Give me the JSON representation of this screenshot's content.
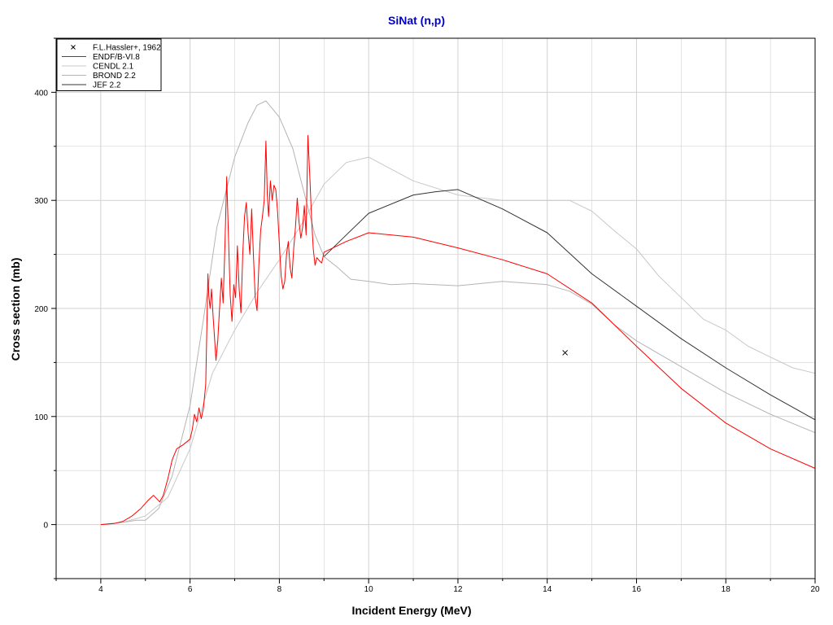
{
  "chart_data": {
    "type": "line",
    "title": "SiNat (n,p)",
    "xlabel": "Incident Energy (MeV)",
    "ylabel": "Cross section (mb)",
    "xlim": [
      3,
      20
    ],
    "ylim": [
      -50,
      450
    ],
    "x_ticks": [
      4,
      6,
      8,
      10,
      12,
      14,
      16,
      18,
      20
    ],
    "y_ticks": [
      0,
      100,
      200,
      300,
      400
    ],
    "grid": true,
    "legend_position": "top-left",
    "series": [
      {
        "name": "F.L.Hassler+, 1962",
        "kind": "points",
        "marker": "x",
        "color": "#000000",
        "points": [
          [
            14.4,
            159
          ]
        ]
      },
      {
        "name": "ENDF/B-VI.8",
        "kind": "line",
        "color": "#ff0000",
        "points": [
          [
            4.0,
            0
          ],
          [
            4.3,
            1
          ],
          [
            4.5,
            3
          ],
          [
            4.7,
            8
          ],
          [
            4.9,
            15
          ],
          [
            5.05,
            22
          ],
          [
            5.18,
            27
          ],
          [
            5.25,
            24
          ],
          [
            5.32,
            21
          ],
          [
            5.4,
            27
          ],
          [
            5.5,
            42
          ],
          [
            5.6,
            60
          ],
          [
            5.7,
            70
          ],
          [
            5.85,
            74
          ],
          [
            6.0,
            79
          ],
          [
            6.05,
            88
          ],
          [
            6.1,
            102
          ],
          [
            6.15,
            95
          ],
          [
            6.2,
            108
          ],
          [
            6.25,
            98
          ],
          [
            6.3,
            108
          ],
          [
            6.35,
            130
          ],
          [
            6.4,
            232
          ],
          [
            6.42,
            212
          ],
          [
            6.45,
            200
          ],
          [
            6.48,
            218
          ],
          [
            6.52,
            190
          ],
          [
            6.55,
            172
          ],
          [
            6.58,
            152
          ],
          [
            6.62,
            170
          ],
          [
            6.66,
            200
          ],
          [
            6.7,
            228
          ],
          [
            6.74,
            205
          ],
          [
            6.78,
            258
          ],
          [
            6.82,
            322
          ],
          [
            6.86,
            268
          ],
          [
            6.9,
            212
          ],
          [
            6.94,
            188
          ],
          [
            6.98,
            222
          ],
          [
            7.02,
            210
          ],
          [
            7.06,
            258
          ],
          [
            7.1,
            218
          ],
          [
            7.14,
            196
          ],
          [
            7.18,
            250
          ],
          [
            7.22,
            285
          ],
          [
            7.26,
            298
          ],
          [
            7.3,
            270
          ],
          [
            7.34,
            250
          ],
          [
            7.38,
            292
          ],
          [
            7.42,
            248
          ],
          [
            7.46,
            210
          ],
          [
            7.5,
            198
          ],
          [
            7.54,
            240
          ],
          [
            7.58,
            272
          ],
          [
            7.62,
            285
          ],
          [
            7.66,
            300
          ],
          [
            7.7,
            355
          ],
          [
            7.73,
            305
          ],
          [
            7.76,
            285
          ],
          [
            7.8,
            318
          ],
          [
            7.84,
            300
          ],
          [
            7.88,
            314
          ],
          [
            7.92,
            310
          ],
          [
            7.96,
            290
          ],
          [
            8.0,
            260
          ],
          [
            8.04,
            230
          ],
          [
            8.08,
            218
          ],
          [
            8.12,
            225
          ],
          [
            8.16,
            250
          ],
          [
            8.2,
            262
          ],
          [
            8.24,
            238
          ],
          [
            8.28,
            228
          ],
          [
            8.32,
            255
          ],
          [
            8.36,
            275
          ],
          [
            8.4,
            302
          ],
          [
            8.44,
            280
          ],
          [
            8.48,
            265
          ],
          [
            8.52,
            275
          ],
          [
            8.56,
            295
          ],
          [
            8.6,
            268
          ],
          [
            8.64,
            360
          ],
          [
            8.68,
            325
          ],
          [
            8.72,
            285
          ],
          [
            8.76,
            255
          ],
          [
            8.8,
            240
          ],
          [
            8.84,
            247
          ],
          [
            8.9,
            244
          ],
          [
            8.95,
            242
          ],
          [
            9.0,
            252
          ],
          [
            9.5,
            262
          ],
          [
            10.0,
            270
          ],
          [
            11.0,
            266
          ],
          [
            12.0,
            256
          ],
          [
            13.0,
            245
          ],
          [
            14.0,
            232
          ],
          [
            15.0,
            205
          ],
          [
            16.0,
            165
          ],
          [
            17.0,
            126
          ],
          [
            18.0,
            94
          ],
          [
            19.0,
            70
          ],
          [
            20.0,
            52
          ]
        ]
      },
      {
        "name": "CENDL 2.1",
        "kind": "line",
        "color": "#c8c8c8",
        "points": [
          [
            4.0,
            0
          ],
          [
            4.5,
            2
          ],
          [
            5.0,
            8
          ],
          [
            5.5,
            25
          ],
          [
            6.0,
            70
          ],
          [
            6.5,
            140
          ],
          [
            7.0,
            180
          ],
          [
            7.5,
            215
          ],
          [
            8.0,
            245
          ],
          [
            8.5,
            278
          ],
          [
            9.0,
            315
          ],
          [
            9.5,
            335
          ],
          [
            10.0,
            340
          ],
          [
            11.0,
            318
          ],
          [
            12.0,
            305
          ],
          [
            13.0,
            300
          ],
          [
            14.0,
            300
          ],
          [
            14.5,
            300
          ],
          [
            15.0,
            290
          ],
          [
            15.5,
            272
          ],
          [
            16.0,
            255
          ],
          [
            16.5,
            230
          ],
          [
            17.0,
            210
          ],
          [
            17.5,
            190
          ],
          [
            18.0,
            180
          ],
          [
            18.5,
            165
          ],
          [
            19.0,
            155
          ],
          [
            19.5,
            145
          ],
          [
            20.0,
            140
          ]
        ]
      },
      {
        "name": "BROND 2.2",
        "kind": "line",
        "color": "#b4b4b4",
        "points": [
          [
            4.0,
            0
          ],
          [
            4.5,
            2
          ],
          [
            4.8,
            4
          ],
          [
            5.0,
            4
          ],
          [
            5.3,
            15
          ],
          [
            5.6,
            45
          ],
          [
            6.0,
            110
          ],
          [
            6.3,
            190
          ],
          [
            6.6,
            275
          ],
          [
            7.0,
            340
          ],
          [
            7.3,
            372
          ],
          [
            7.5,
            388
          ],
          [
            7.7,
            392
          ],
          [
            8.0,
            377
          ],
          [
            8.3,
            348
          ],
          [
            8.6,
            300
          ],
          [
            8.8,
            268
          ],
          [
            9.0,
            248
          ],
          [
            9.3,
            238
          ],
          [
            9.6,
            227
          ],
          [
            10.0,
            225
          ],
          [
            10.5,
            222
          ],
          [
            11.0,
            223
          ],
          [
            12.0,
            221
          ],
          [
            13.0,
            225
          ],
          [
            14.0,
            222
          ],
          [
            14.5,
            216
          ],
          [
            15.0,
            204
          ],
          [
            15.5,
            185
          ],
          [
            16.0,
            170
          ],
          [
            17.0,
            146
          ],
          [
            18.0,
            122
          ],
          [
            19.0,
            102
          ],
          [
            20.0,
            85
          ]
        ]
      },
      {
        "name": "JEF 2.2",
        "kind": "line",
        "color": "#333333",
        "points": [
          [
            9.0,
            248
          ],
          [
            9.5,
            268
          ],
          [
            10.0,
            288
          ],
          [
            11.0,
            305
          ],
          [
            11.5,
            308
          ],
          [
            12.0,
            310
          ],
          [
            13.0,
            292
          ],
          [
            14.0,
            270
          ],
          [
            15.0,
            232
          ],
          [
            16.0,
            202
          ],
          [
            17.0,
            172
          ],
          [
            18.0,
            145
          ],
          [
            19.0,
            120
          ],
          [
            20.0,
            97
          ]
        ]
      }
    ]
  },
  "style": {
    "background": "#ffffff",
    "grid_color": "#d2d2d2",
    "title_color": "#0000c8"
  }
}
